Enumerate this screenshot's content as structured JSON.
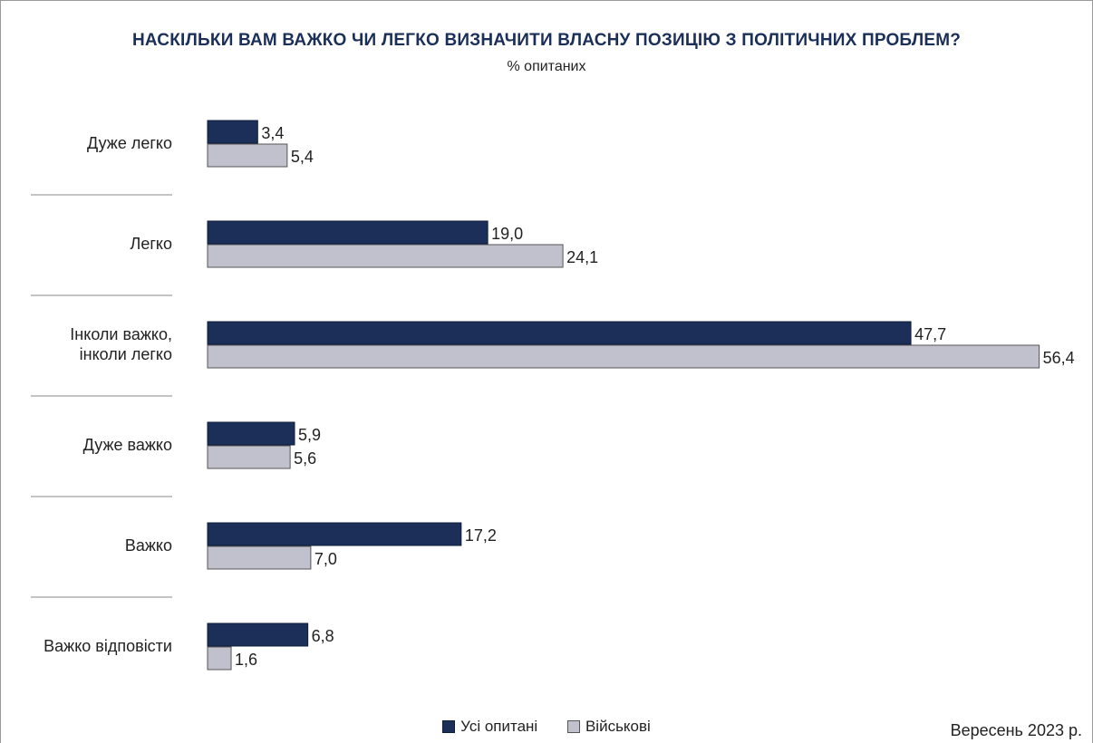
{
  "title": "НАСКІЛЬКИ ВАМ ВАЖКО ЧИ ЛЕГКО ВИЗНАЧИТИ ВЛАСНУ ПОЗИЦІЮ З ПОЛІТИЧНИХ ПРОБЛЕМ?",
  "subtitle": "% опитаних",
  "date_note": "Вересень 2023 р.",
  "colors": {
    "all_respondents": "#1b2f59",
    "military": "#c1c1cd"
  },
  "chart_data": {
    "type": "bar",
    "orientation": "horizontal",
    "categories": [
      [
        "Дуже легко"
      ],
      [
        "Легко"
      ],
      [
        "Інколи важко,",
        "інколи легко"
      ],
      [
        "Дуже важко"
      ],
      [
        "Важко"
      ],
      [
        "Важко відповісти"
      ]
    ],
    "series": [
      {
        "name": "Усі опитані",
        "values": [
          3.4,
          19.0,
          47.7,
          5.9,
          17.2,
          6.8
        ],
        "labels": [
          "3,4",
          "19,0",
          "47,7",
          "5,9",
          "17,2",
          "6,8"
        ]
      },
      {
        "name": "Військові",
        "values": [
          5.4,
          24.1,
          56.4,
          5.6,
          7.0,
          1.6
        ],
        "labels": [
          "5,4",
          "24,1",
          "56,4",
          "5,6",
          "7,0",
          "1,6"
        ]
      }
    ],
    "xlim": [
      0,
      56.4
    ],
    "legend_position": "bottom-center"
  }
}
